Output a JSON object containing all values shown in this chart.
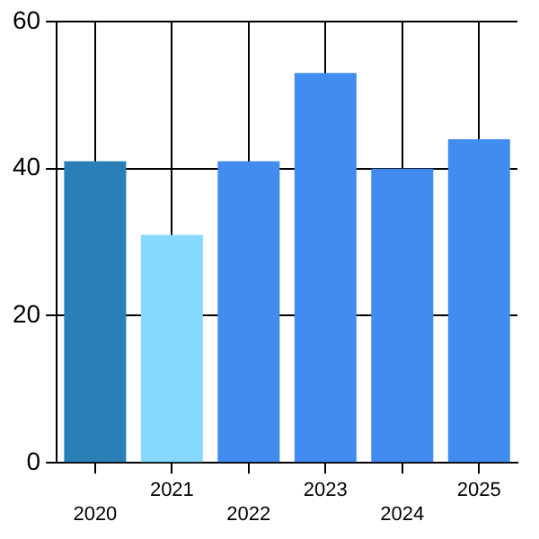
{
  "chart_data": {
    "type": "bar",
    "categories": [
      "2020",
      "2021",
      "2022",
      "2023",
      "2024",
      "2025"
    ],
    "values": [
      41,
      31,
      41,
      53,
      40,
      44
    ],
    "colors": [
      "#2a7fb8",
      "#87d8ff",
      "#428bef",
      "#428bef",
      "#428bef",
      "#428bef"
    ],
    "ylim": [
      0,
      60
    ],
    "yticks": [
      0,
      20,
      40,
      60
    ],
    "grid": true
  }
}
